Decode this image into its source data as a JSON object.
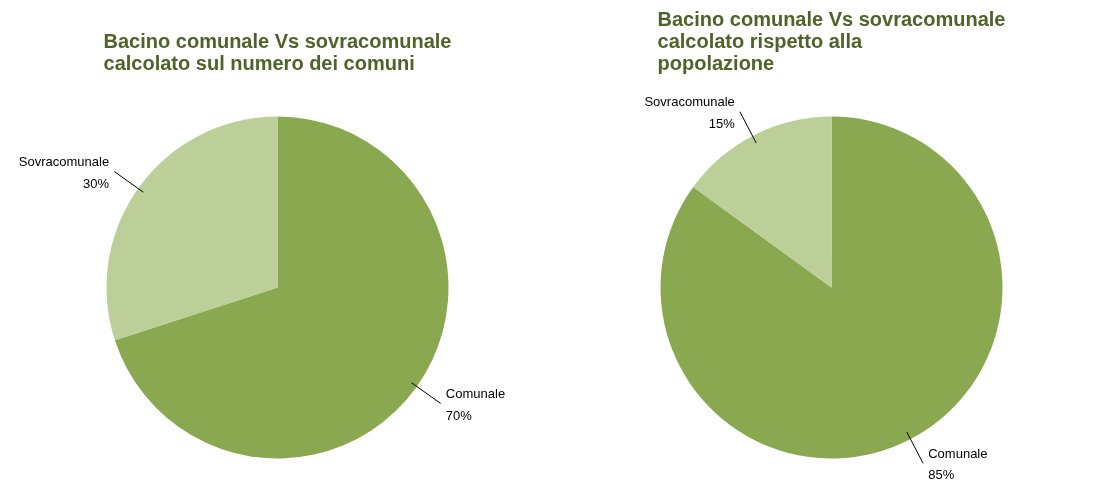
{
  "chart_data": [
    {
      "type": "pie",
      "title": "Bacino comunale Vs sovracomunale calcolato sul numero dei comuni",
      "categories": [
        "Comunale",
        "Sovracomunale"
      ],
      "values": [
        70,
        30
      ],
      "colors": [
        "#8aa84f",
        "#bccf98"
      ],
      "value_labels": [
        "70%",
        "30%"
      ]
    },
    {
      "type": "pie",
      "title": "Bacino comunale Vs sovracomunale calcolato rispetto alla popolazione",
      "categories": [
        "Comunale",
        "Sovracomunale"
      ],
      "values": [
        85,
        15
      ],
      "colors": [
        "#8aa84f",
        "#bccf98"
      ],
      "value_labels": [
        "85%",
        "15%"
      ]
    }
  ]
}
